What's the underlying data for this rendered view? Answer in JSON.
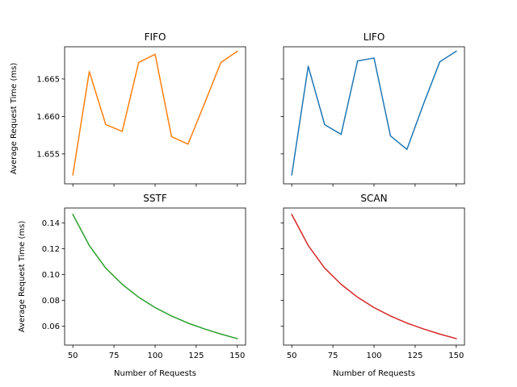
{
  "chart_data": [
    {
      "type": "line",
      "title": "FIFO",
      "ylabel": "Average Request Time (ms)",
      "xlabel": "",
      "color": "#ff7f0e",
      "x": [
        50,
        60,
        70,
        80,
        90,
        100,
        110,
        120,
        130,
        140,
        150
      ],
      "y": [
        1.6522,
        1.666,
        1.6589,
        1.658,
        1.6672,
        1.6683,
        1.6573,
        1.6563,
        1.6617,
        1.6672,
        1.6687
      ],
      "xlim": [
        45,
        155
      ],
      "ylim": [
        1.651,
        1.6693
      ],
      "yticks": [
        1.655,
        1.66,
        1.665
      ],
      "ytick_labels": [
        "1.655",
        "1.660",
        "1.665"
      ],
      "xticks": [
        50,
        75,
        100,
        125,
        150
      ],
      "show_xtick_labels": false,
      "show_ytick_labels": true
    },
    {
      "type": "line",
      "title": "LIFO",
      "ylabel": "",
      "xlabel": "",
      "color": "#1f77b4",
      "x": [
        50,
        60,
        70,
        80,
        90,
        100,
        110,
        120,
        130,
        140,
        150
      ],
      "y": [
        1.6522,
        1.6667,
        1.6589,
        1.6576,
        1.6674,
        1.6678,
        1.6574,
        1.6556,
        1.6616,
        1.6673,
        1.6687
      ],
      "xlim": [
        45,
        155
      ],
      "ylim": [
        1.651,
        1.6693
      ],
      "yticks": [
        1.655,
        1.66,
        1.665
      ],
      "ytick_labels": [],
      "xticks": [
        50,
        75,
        100,
        125,
        150
      ],
      "show_xtick_labels": false,
      "show_ytick_labels": false
    },
    {
      "type": "line",
      "title": "SSTF",
      "ylabel": "Average Request Time (ms)",
      "xlabel": "Number of Requests",
      "color": "#2ca02c",
      "x": [
        50,
        60,
        70,
        80,
        90,
        100,
        110,
        120,
        130,
        140,
        150
      ],
      "y": [
        0.1465,
        0.1225,
        0.105,
        0.0925,
        0.0825,
        0.0745,
        0.068,
        0.0625,
        0.058,
        0.054,
        0.0505
      ],
      "xlim": [
        45,
        155
      ],
      "ylim": [
        0.0455,
        0.1515
      ],
      "yticks": [
        0.06,
        0.08,
        0.1,
        0.12,
        0.14
      ],
      "ytick_labels": [
        "0.06",
        "0.08",
        "0.10",
        "0.12",
        "0.14"
      ],
      "xticks": [
        50,
        75,
        100,
        125,
        150
      ],
      "xtick_labels": [
        "50",
        "75",
        "100",
        "125",
        "150"
      ],
      "show_xtick_labels": true,
      "show_ytick_labels": true
    },
    {
      "type": "line",
      "title": "SCAN",
      "ylabel": "",
      "xlabel": "Number of Requests",
      "color": "#d62728",
      "x": [
        50,
        60,
        70,
        80,
        90,
        100,
        110,
        120,
        130,
        140,
        150
      ],
      "y": [
        0.1465,
        0.1225,
        0.105,
        0.0925,
        0.0825,
        0.0745,
        0.068,
        0.0625,
        0.058,
        0.054,
        0.0505
      ],
      "xlim": [
        45,
        155
      ],
      "ylim": [
        0.0455,
        0.1515
      ],
      "yticks": [
        0.06,
        0.08,
        0.1,
        0.12,
        0.14
      ],
      "ytick_labels": [],
      "xticks": [
        50,
        75,
        100,
        125,
        150
      ],
      "xtick_labels": [
        "50",
        "75",
        "100",
        "125",
        "150"
      ],
      "show_xtick_labels": true,
      "show_ytick_labels": false
    }
  ]
}
